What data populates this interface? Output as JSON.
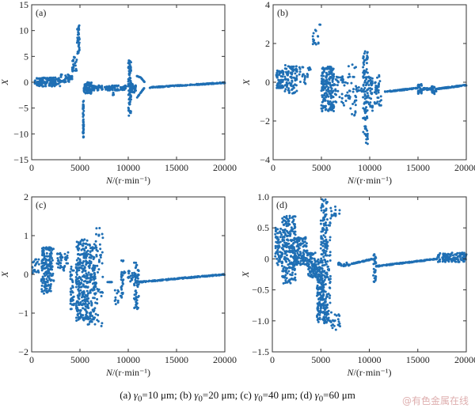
{
  "caption": {
    "a": "(a)  ",
    "gamma": "γ",
    "sub": "0",
    "a_val": "=10  μm; (b) ",
    "b_val": "=20 μm; (c) ",
    "c_val": "=40 μm; (d) ",
    "d_val": "=60 μm"
  },
  "watermark": "@有色金属在线",
  "marker_color": "#1f6fb4",
  "chart_data": [
    {
      "panel": "(a)",
      "type": "scatter",
      "xlabel": "N/(r·min⁻¹)",
      "ylabel": "X",
      "xlim": [
        0,
        20000
      ],
      "ylim": [
        -15,
        15
      ],
      "xticks": [
        0,
        5000,
        10000,
        15000,
        20000
      ],
      "yticks": [
        -15,
        -10,
        -5,
        0,
        5,
        10,
        15
      ],
      "grid": false,
      "segments": [
        {
          "x": [
            300,
            3000
          ],
          "y": [
            -0.8,
            0.9
          ],
          "n": 140
        },
        {
          "x": [
            3000,
            4200
          ],
          "y": [
            0.0,
            1.5
          ],
          "n": 40
        },
        {
          "x": [
            4200,
            4700
          ],
          "y": [
            2.0,
            5.0
          ],
          "n": 25
        },
        {
          "x": [
            4700,
            4950
          ],
          "y": [
            5.5,
            11.2
          ],
          "n": 40
        },
        {
          "x": [
            5300,
            5400
          ],
          "y": [
            -10.7,
            -3.6
          ],
          "n": 45
        },
        {
          "x": [
            5400,
            6200
          ],
          "y": [
            -2.2,
            0.0
          ],
          "n": 70
        },
        {
          "x": [
            6200,
            9800
          ],
          "y": [
            -1.6,
            -0.6
          ],
          "n": 110
        },
        {
          "x": [
            8400,
            8500
          ],
          "y": [
            -2.5,
            -1.8
          ],
          "n": 5
        },
        {
          "x": [
            10000,
            10300
          ],
          "y": [
            -6.5,
            4.5
          ],
          "n": 90
        },
        {
          "x": [
            10300,
            10800
          ],
          "y": [
            -2.0,
            -0.3
          ],
          "n": 30
        },
        {
          "x": [
            10900,
            11700
          ],
          "y": [
            0.0,
            1.5
          ],
          "n": 20,
          "curve": "upper"
        },
        {
          "x": [
            10900,
            11700
          ],
          "y": [
            -3.0,
            -1.0
          ],
          "n": 20,
          "curve": "lower"
        },
        {
          "x": [
            12200,
            20000
          ],
          "y": [
            -1.0,
            -0.1
          ],
          "n": 160,
          "trend": true
        }
      ]
    },
    {
      "panel": "(b)",
      "type": "scatter",
      "xlabel": "N/(r·min⁻¹)",
      "ylabel": "X",
      "xlim": [
        0,
        20000
      ],
      "ylim": [
        -4,
        4
      ],
      "xticks": [
        0,
        5000,
        10000,
        15000,
        20000
      ],
      "yticks": [
        -4,
        -2,
        0,
        2,
        4
      ],
      "grid": false,
      "segments": [
        {
          "x": [
            300,
            1100
          ],
          "y": [
            -0.3,
            0.6
          ],
          "n": 60
        },
        {
          "x": [
            1200,
            2500
          ],
          "y": [
            -0.6,
            0.9
          ],
          "n": 90
        },
        {
          "x": [
            2700,
            3900
          ],
          "y": [
            -0.1,
            0.9
          ],
          "n": 25
        },
        {
          "x": [
            4100,
            4700
          ],
          "y": [
            1.8,
            2.7
          ],
          "n": 15
        },
        {
          "x": [
            4800,
            4900
          ],
          "y": [
            2.9,
            3.0
          ],
          "n": 2
        },
        {
          "x": [
            5000,
            6300
          ],
          "y": [
            -1.5,
            0.8
          ],
          "n": 200
        },
        {
          "x": [
            6300,
            8000
          ],
          "y": [
            -1.2,
            0.3
          ],
          "n": 50
        },
        {
          "x": [
            7800,
            8600
          ],
          "y": [
            -2.1,
            1.3
          ],
          "n": 25
        },
        {
          "x": [
            8600,
            9300
          ],
          "y": [
            -0.5,
            -0.2
          ],
          "n": 10
        },
        {
          "x": [
            9300,
            9800
          ],
          "y": [
            -3.2,
            1.7
          ],
          "n": 100
        },
        {
          "x": [
            9800,
            10300
          ],
          "y": [
            -1.5,
            0.3
          ],
          "n": 40
        },
        {
          "x": [
            10500,
            11200
          ],
          "y": [
            -1.2,
            0.4
          ],
          "n": 40
        },
        {
          "x": [
            11500,
            15000
          ],
          "y": [
            -0.5,
            -0.3
          ],
          "n": 80,
          "trend": true
        },
        {
          "x": [
            15000,
            15400
          ],
          "y": [
            -0.6,
            -0.1
          ],
          "n": 30
        },
        {
          "x": [
            15400,
            16400
          ],
          "y": [
            -0.4,
            -0.3
          ],
          "n": 25
        },
        {
          "x": [
            16400,
            16900
          ],
          "y": [
            -0.6,
            -0.2
          ],
          "n": 30
        },
        {
          "x": [
            16900,
            20000
          ],
          "y": [
            -0.35,
            -0.15
          ],
          "n": 80,
          "trend": true
        }
      ]
    },
    {
      "panel": "(c)",
      "type": "scatter",
      "xlabel": "N/(r·min⁻¹)",
      "ylabel": "X",
      "xlim": [
        0,
        20000
      ],
      "ylim": [
        -2,
        2
      ],
      "xticks": [
        0,
        5000,
        10000,
        15000,
        20000
      ],
      "yticks": [
        -2,
        -1,
        0,
        1,
        2
      ],
      "grid": false,
      "segments": [
        {
          "x": [
            0,
            800
          ],
          "y": [
            0.0,
            0.4
          ],
          "n": 20
        },
        {
          "x": [
            1000,
            2000
          ],
          "y": [
            -0.5,
            0.7
          ],
          "n": 150
        },
        {
          "x": [
            2000,
            2300
          ],
          "y": [
            -0.2,
            0.7
          ],
          "n": 20
        },
        {
          "x": [
            2600,
            3800
          ],
          "y": [
            0.1,
            0.6
          ],
          "n": 40
        },
        {
          "x": [
            4000,
            4400
          ],
          "y": [
            -0.9,
            0.2
          ],
          "n": 40
        },
        {
          "x": [
            4600,
            5800
          ],
          "y": [
            -1.2,
            0.9
          ],
          "n": 260
        },
        {
          "x": [
            5800,
            6600
          ],
          "y": [
            -1.3,
            0.8
          ],
          "n": 120
        },
        {
          "x": [
            6600,
            7400
          ],
          "y": [
            -1.4,
            1.2
          ],
          "n": 50
        },
        {
          "x": [
            7800,
            8400
          ],
          "y": [
            -0.2,
            -0.2
          ],
          "n": 8
        },
        {
          "x": [
            8600,
            9000
          ],
          "y": [
            -0.8,
            -0.4
          ],
          "n": 10
        },
        {
          "x": [
            9200,
            9500
          ],
          "y": [
            -0.6,
            0.4
          ],
          "n": 25
        },
        {
          "x": [
            9500,
            10500
          ],
          "y": [
            -0.2,
            0.1
          ],
          "n": 20
        },
        {
          "x": [
            10600,
            11100
          ],
          "y": [
            -0.9,
            0.3
          ],
          "n": 60
        },
        {
          "x": [
            11100,
            20000
          ],
          "y": [
            -0.2,
            0.0
          ],
          "n": 200,
          "trend": true
        }
      ]
    },
    {
      "panel": "(d)",
      "type": "scatter",
      "xlabel": "N/(r·min⁻¹)",
      "ylabel": "X",
      "xlim": [
        0,
        20000
      ],
      "ylim": [
        -1.5,
        1.0
      ],
      "xticks": [
        0,
        5000,
        10000,
        15000,
        20000
      ],
      "yticks": [
        -1.5,
        -1.0,
        -0.5,
        0,
        0.5,
        1.0
      ],
      "ytick_labels": [
        "−1.5",
        "−1.0",
        "−0.5",
        "0",
        "0.5",
        "1.0"
      ],
      "grid": false,
      "segments": [
        {
          "x": [
            300,
            1000
          ],
          "y": [
            -0.1,
            0.5
          ],
          "n": 60
        },
        {
          "x": [
            1000,
            2400
          ],
          "y": [
            -0.4,
            0.7
          ],
          "n": 220
        },
        {
          "x": [
            2400,
            3600
          ],
          "y": [
            -0.1,
            0.35
          ],
          "n": 110
        },
        {
          "x": [
            3600,
            4600
          ],
          "y": [
            -0.3,
            0.1
          ],
          "n": 90
        },
        {
          "x": [
            4600,
            5000
          ],
          "y": [
            -1.05,
            0.0
          ],
          "n": 90
        },
        {
          "x": [
            5000,
            5700
          ],
          "y": [
            -1.05,
            0.98
          ],
          "n": 230
        },
        {
          "x": [
            5700,
            6000
          ],
          "y": [
            -1.05,
            0.6
          ],
          "n": 40
        },
        {
          "x": [
            6000,
            7000
          ],
          "y": [
            -1.15,
            -0.85
          ],
          "n": 20
        },
        {
          "x": [
            6000,
            7000
          ],
          "y": [
            0.65,
            0.9
          ],
          "n": 14
        },
        {
          "x": [
            6600,
            8000
          ],
          "y": [
            -0.12,
            -0.06
          ],
          "n": 25
        },
        {
          "x": [
            8200,
            10400
          ],
          "y": [
            -0.08,
            0.0
          ],
          "n": 50,
          "trend": true
        },
        {
          "x": [
            10400,
            10700
          ],
          "y": [
            -0.38,
            0.1
          ],
          "n": 30
        },
        {
          "x": [
            10700,
            17000
          ],
          "y": [
            -0.12,
            0.0
          ],
          "n": 150,
          "trend": true
        },
        {
          "x": [
            17000,
            20000
          ],
          "y": [
            -0.05,
            0.1
          ],
          "n": 120
        }
      ]
    }
  ]
}
